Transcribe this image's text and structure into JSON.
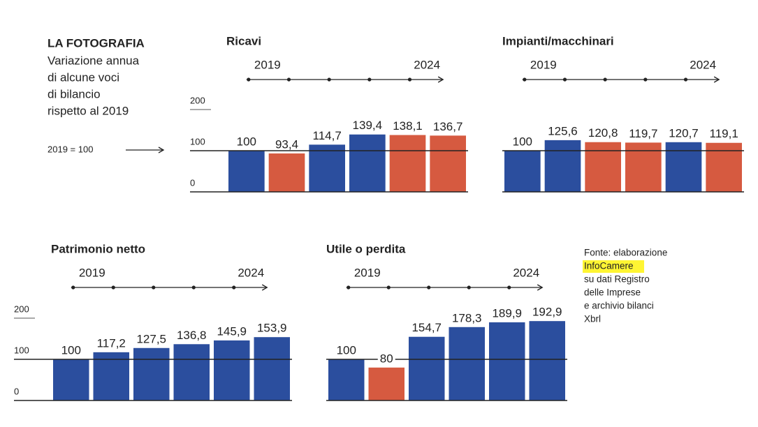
{
  "header": {
    "title": "LA FOTOGRAFIA",
    "subtitle": [
      "Variazione annua",
      "di alcune voci",
      "di bilancio",
      "rispetto al 2019"
    ],
    "baseline_note": "2019 = 100"
  },
  "chart_data": [
    {
      "type": "bar",
      "title": "Ricavi",
      "categories": [
        "2019",
        null,
        null,
        null,
        null,
        "2024"
      ],
      "values": [
        100,
        93.4,
        114.7,
        139.4,
        138.1,
        136.7
      ],
      "value_labels": [
        "100",
        "93,4",
        "114,7",
        "139,4",
        "138,1",
        "136,7"
      ],
      "colors": [
        "#2b4e9e",
        "#d65a40",
        "#2b4e9e",
        "#2b4e9e",
        "#d65a40",
        "#d65a40"
      ],
      "colored_labels": true,
      "show_tick_labels": true,
      "ylim": [
        0,
        200
      ],
      "yticks": [
        0,
        100,
        200
      ]
    },
    {
      "type": "bar",
      "title": "Impianti/macchinari",
      "categories": [
        "2019",
        null,
        null,
        null,
        null,
        "2024"
      ],
      "values": [
        100,
        125.6,
        120.8,
        119.7,
        120.7,
        119.1
      ],
      "value_labels": [
        "100",
        "125,6",
        "120,8",
        "119,7",
        "120,7",
        "119,1"
      ],
      "colors": [
        "#2b4e9e",
        "#2b4e9e",
        "#d65a40",
        "#d65a40",
        "#2b4e9e",
        "#d65a40"
      ],
      "colored_labels": true,
      "show_tick_labels": false,
      "ylim": [
        0,
        200
      ],
      "yticks": [
        0,
        100,
        200
      ]
    },
    {
      "type": "bar",
      "title": "Patrimonio netto",
      "categories": [
        "2019",
        null,
        null,
        null,
        null,
        "2024"
      ],
      "values": [
        100,
        117.2,
        127.5,
        136.8,
        145.9,
        153.9
      ],
      "value_labels": [
        "100",
        "117,2",
        "127,5",
        "136,8",
        "145,9",
        "153,9"
      ],
      "colors": [
        "#2b4e9e",
        "#2b4e9e",
        "#2b4e9e",
        "#2b4e9e",
        "#2b4e9e",
        "#2b4e9e"
      ],
      "colored_labels": false,
      "show_tick_labels": true,
      "ylim": [
        0,
        200
      ],
      "yticks": [
        0,
        100,
        200
      ]
    },
    {
      "type": "bar",
      "title": "Utile o perdita",
      "categories": [
        "2019",
        null,
        null,
        null,
        null,
        "2024"
      ],
      "values": [
        100,
        80,
        154.7,
        178.3,
        189.9,
        192.9
      ],
      "value_labels": [
        "100",
        "80",
        "154,7",
        "178,3",
        "189,9",
        "192,9"
      ],
      "colors": [
        "#2b4e9e",
        "#d65a40",
        "#2b4e9e",
        "#2b4e9e",
        "#2b4e9e",
        "#2b4e9e"
      ],
      "colored_labels": false,
      "show_tick_labels": false,
      "ylim": [
        0,
        200
      ],
      "yticks": [
        0,
        100,
        200
      ]
    }
  ],
  "source": {
    "prefix": "Fonte: elaborazione",
    "highlight": "InfoCamere",
    "rest": [
      "su dati Registro",
      "delle Imprese",
      "e archivio bilanci",
      "Xbrl"
    ]
  }
}
